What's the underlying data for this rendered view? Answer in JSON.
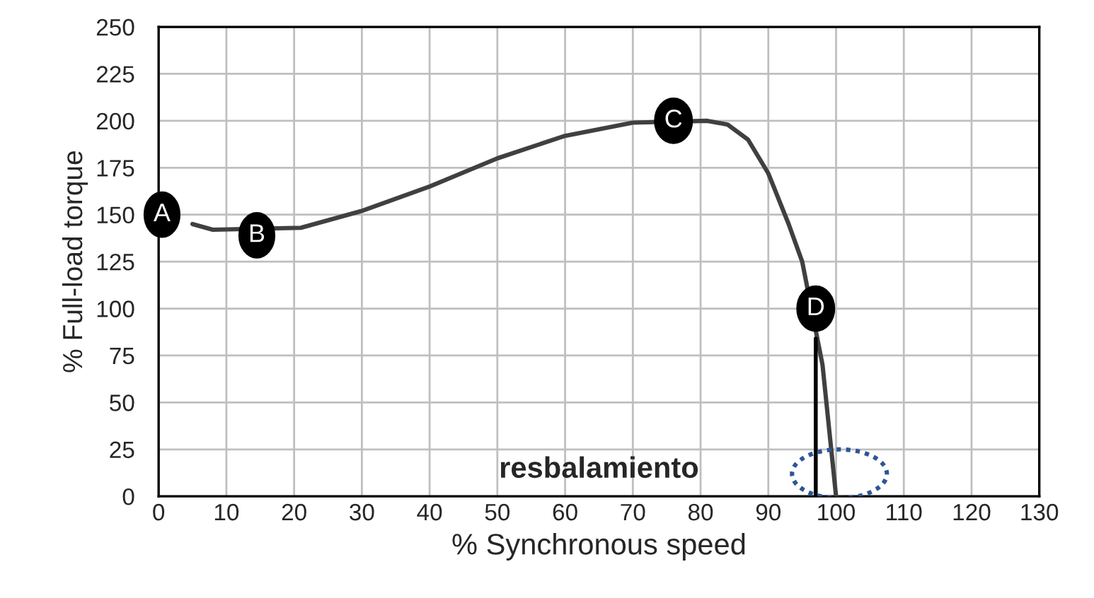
{
  "chart_data": {
    "type": "line",
    "xlabel": "% Synchronous speed",
    "ylabel": "% Full-load torque",
    "xlim": [
      0,
      130
    ],
    "xticks": [
      0,
      10,
      20,
      30,
      40,
      50,
      60,
      70,
      80,
      90,
      100,
      110,
      120,
      130
    ],
    "ylim": [
      0,
      250
    ],
    "yticks": [
      0,
      25,
      50,
      75,
      100,
      125,
      150,
      175,
      200,
      225,
      250
    ],
    "grid": true,
    "legend": false,
    "marker": "none",
    "line_style": "solid",
    "series": [
      {
        "color": "#404040",
        "x": [
          5,
          8,
          21,
          30,
          40,
          50,
          60,
          70,
          81,
          84,
          87,
          90,
          93,
          95,
          98,
          99,
          100
        ],
        "values": [
          145,
          142,
          143,
          152,
          165,
          180,
          192,
          199,
          200,
          198,
          190,
          172,
          145,
          125,
          70,
          35,
          0
        ]
      },
      {
        "color": "#000000",
        "x": [
          97,
          97
        ],
        "values": [
          0,
          84
        ]
      }
    ],
    "annotations": [
      {
        "text": "A",
        "x": 0.5,
        "y": 150
      },
      {
        "text": "B",
        "x": 14.5,
        "y": 139
      },
      {
        "text": "C",
        "x": 76,
        "y": 200
      },
      {
        "text": "D",
        "x": 97,
        "y": 100
      },
      "resbalamiento"
    ]
  }
}
